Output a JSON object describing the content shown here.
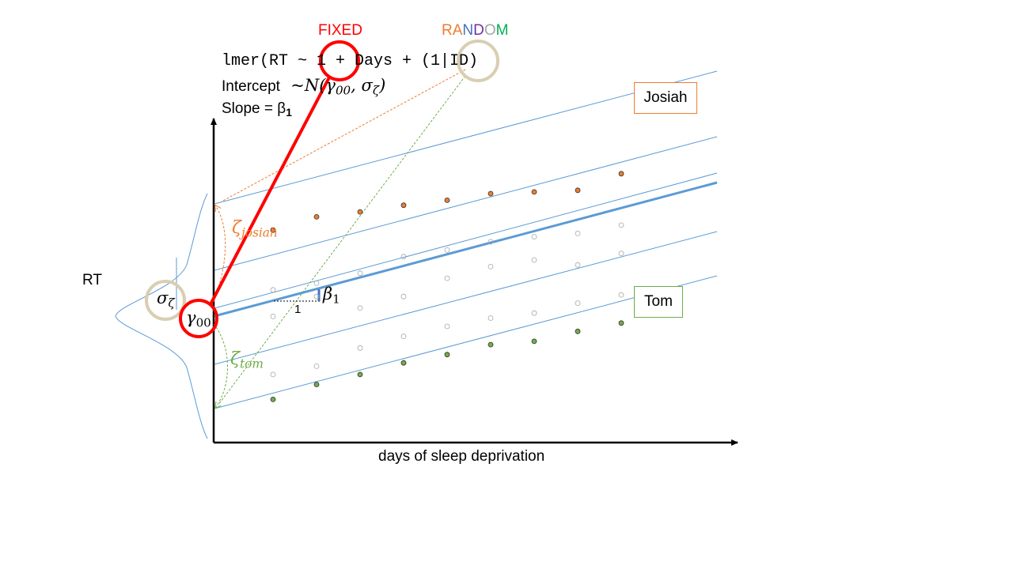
{
  "labels": {
    "fixed": "FIXED",
    "random": [
      "R",
      "A",
      "N",
      "D",
      "O",
      "M"
    ],
    "random_colors": [
      "#ed7d31",
      "#ed7d31",
      "#4472c4",
      "#7030a0",
      "#a5a5a5",
      "#00b050"
    ],
    "formula": "lmer(RT ~ 1 + Days + (1|ID)",
    "intercept_text": "Intercept",
    "intercept_dist": "~N(γ",
    "intercept_dist_sub": "00",
    "intercept_dist_rest": ", σ",
    "intercept_dist_sub2": "ζ",
    "intercept_dist_close": ")",
    "slope_text": "Slope = β",
    "slope_sub": "1",
    "y_axis": "RT",
    "x_axis": "days of sleep deprivation",
    "josiah": "Josiah",
    "tom": "Tom",
    "sigma": "σ",
    "sigma_sub": "ζ",
    "gamma": "γ",
    "gamma_sub": "00",
    "zeta_josiah": "ζ",
    "zeta_josiah_sub": "josiah",
    "zeta_tom": "ζ",
    "zeta_tom_sub": "tom",
    "beta": "β",
    "beta_sub": "1",
    "one": "1"
  },
  "colors": {
    "fixed": "#ff0000",
    "josiah": "#ed7d31",
    "tom": "#70ad47",
    "line": "#5b9bd5",
    "random_circle": "#d9ceb2",
    "grey_point": "#a6a6a6"
  },
  "chart_data": {
    "type": "scatter",
    "xlabel": "days of sleep deprivation",
    "ylabel": "RT",
    "series": [
      {
        "name": "Josiah",
        "x": [
          1,
          2,
          3,
          4,
          5,
          6,
          7,
          8,
          9
        ],
        "y": [
          6.4,
          6.8,
          6.95,
          7.15,
          7.3,
          7.5,
          7.55,
          7.6,
          8.1
        ]
      },
      {
        "name": "Tom",
        "x": [
          1,
          2,
          3,
          4,
          5,
          6,
          7,
          8,
          9
        ],
        "y": [
          1.3,
          1.75,
          2.05,
          2.4,
          2.65,
          2.95,
          3.05,
          3.35,
          3.6
        ]
      },
      {
        "x": [
          1,
          2,
          3,
          4,
          5,
          6,
          7,
          8,
          9
        ],
        "y": [
          4.6,
          4.8,
          5.1,
          5.6,
          5.8,
          6.05,
          6.2,
          6.3,
          6.55
        ]
      },
      {
        "x": [
          1,
          2,
          3,
          4,
          5,
          6,
          7,
          8,
          9
        ],
        "y": [
          3.8,
          4.4,
          4.05,
          4.4,
          4.95,
          5.3,
          5.5,
          5.35,
          5.7
        ]
      },
      {
        "x": [
          1,
          2,
          3,
          4,
          5,
          6,
          7,
          8,
          9
        ],
        "y": [
          2.05,
          2.3,
          2.85,
          3.2,
          3.5,
          3.75,
          3.9,
          4.2,
          4.45
        ]
      }
    ]
  }
}
